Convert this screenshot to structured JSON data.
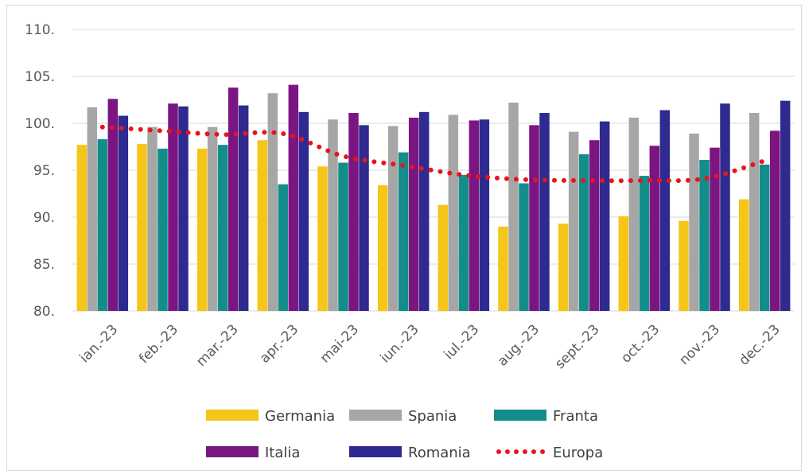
{
  "chart_data": {
    "type": "bar",
    "categories": [
      "ian.-23",
      "feb.-23",
      "mar.-23",
      "apr.-23",
      "mai-23",
      "iun.-23",
      "iul.-23",
      "aug.-23",
      "sept.-23",
      "oct.-23",
      "nov.-23",
      "dec.-23"
    ],
    "ylim": [
      80,
      110
    ],
    "yticks": [
      "80.",
      "85.",
      "90.",
      "95.",
      "100.",
      "105.",
      "110."
    ],
    "grid": true,
    "legend_position": "bottom",
    "series": [
      {
        "name": "Germania",
        "type": "bar",
        "color": "#f5c518",
        "values": [
          97.7,
          97.8,
          97.3,
          98.2,
          95.4,
          93.4,
          91.3,
          89.0,
          89.3,
          90.1,
          89.6,
          91.9
        ]
      },
      {
        "name": "Spania",
        "type": "bar",
        "color": "#a6a6a6",
        "values": [
          101.7,
          99.6,
          99.6,
          103.2,
          100.4,
          99.7,
          100.9,
          102.2,
          99.1,
          100.6,
          98.9,
          101.1
        ]
      },
      {
        "name": "Franta",
        "type": "bar",
        "color": "#138d8a",
        "values": [
          98.3,
          97.3,
          97.7,
          93.5,
          95.8,
          96.9,
          94.5,
          93.6,
          96.7,
          94.4,
          96.1,
          95.6
        ]
      },
      {
        "name": "Italia",
        "type": "bar",
        "color": "#7b1582",
        "values": [
          102.6,
          102.1,
          103.8,
          104.1,
          101.1,
          100.6,
          100.3,
          99.8,
          98.2,
          97.6,
          97.4,
          99.2
        ]
      },
      {
        "name": "Romania",
        "type": "bar",
        "color": "#2e2a8f",
        "values": [
          100.8,
          101.8,
          101.9,
          101.2,
          99.8,
          101.2,
          100.4,
          101.1,
          100.2,
          101.4,
          102.1,
          102.4
        ]
      },
      {
        "name": "Europa",
        "type": "line",
        "style": "dotted",
        "color": "#e8141b",
        "values": [
          99.6,
          99.2,
          98.8,
          98.9,
          96.5,
          95.5,
          94.5,
          94.0,
          93.9,
          93.9,
          94.1,
          96.0
        ]
      }
    ]
  }
}
